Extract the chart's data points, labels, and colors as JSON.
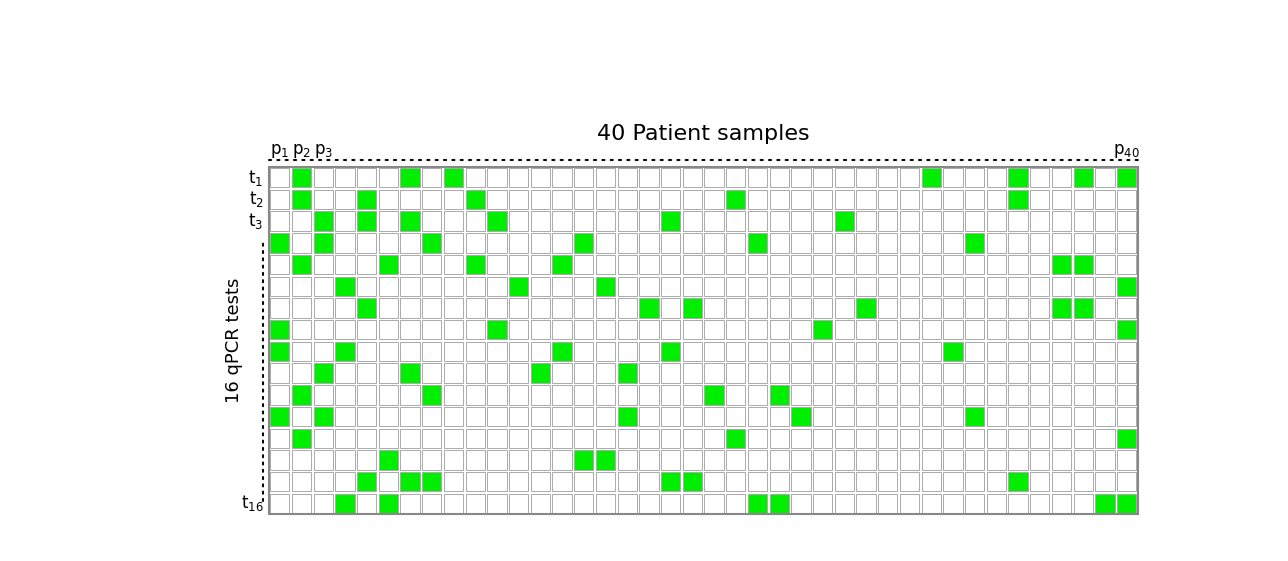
{
  "title": "40 Patient samples",
  "n_rows": 16,
  "n_cols": 40,
  "ylabel": "16 qPCR tests",
  "green_color": "#00ee00",
  "grid_color": "#aaaaaa",
  "bg_color": "#ffffff",
  "cell_bg": "#ffffff",
  "matrix": [
    [
      0,
      1,
      0,
      0,
      0,
      0,
      1,
      0,
      1,
      0,
      0,
      0,
      0,
      0,
      0,
      0,
      0,
      0,
      0,
      0,
      0,
      0,
      0,
      0,
      0,
      0,
      0,
      0,
      0,
      0,
      1,
      0,
      0,
      0,
      1,
      0,
      0,
      1,
      0,
      1
    ],
    [
      0,
      1,
      0,
      0,
      1,
      0,
      0,
      0,
      0,
      1,
      0,
      0,
      0,
      0,
      0,
      0,
      0,
      0,
      0,
      0,
      0,
      1,
      0,
      0,
      0,
      0,
      0,
      0,
      0,
      0,
      0,
      0,
      0,
      0,
      1,
      0,
      0,
      0,
      0,
      0
    ],
    [
      0,
      0,
      1,
      0,
      1,
      0,
      1,
      0,
      0,
      0,
      1,
      0,
      0,
      0,
      0,
      0,
      0,
      0,
      1,
      0,
      0,
      0,
      0,
      0,
      0,
      0,
      1,
      0,
      0,
      0,
      0,
      0,
      0,
      0,
      0,
      0,
      0,
      0,
      0,
      0
    ],
    [
      1,
      0,
      1,
      0,
      0,
      0,
      0,
      1,
      0,
      0,
      0,
      0,
      0,
      0,
      1,
      0,
      0,
      0,
      0,
      0,
      0,
      0,
      1,
      0,
      0,
      0,
      0,
      0,
      0,
      0,
      0,
      0,
      1,
      0,
      0,
      0,
      0,
      0,
      0,
      0
    ],
    [
      0,
      1,
      0,
      0,
      0,
      1,
      0,
      0,
      0,
      1,
      0,
      0,
      0,
      1,
      0,
      0,
      0,
      0,
      0,
      0,
      0,
      0,
      0,
      0,
      0,
      0,
      0,
      0,
      0,
      0,
      0,
      0,
      0,
      0,
      0,
      0,
      1,
      1,
      0,
      0
    ],
    [
      0,
      0,
      0,
      1,
      0,
      0,
      0,
      0,
      0,
      0,
      0,
      1,
      0,
      0,
      0,
      1,
      0,
      0,
      0,
      0,
      0,
      0,
      0,
      0,
      0,
      0,
      0,
      0,
      0,
      0,
      0,
      0,
      0,
      0,
      0,
      0,
      0,
      0,
      0,
      1
    ],
    [
      0,
      0,
      0,
      0,
      1,
      0,
      0,
      0,
      0,
      0,
      0,
      0,
      0,
      0,
      0,
      0,
      0,
      1,
      0,
      1,
      0,
      0,
      0,
      0,
      0,
      0,
      0,
      1,
      0,
      0,
      0,
      0,
      0,
      0,
      0,
      0,
      1,
      1,
      0,
      0
    ],
    [
      1,
      0,
      0,
      0,
      0,
      0,
      0,
      0,
      0,
      0,
      1,
      0,
      0,
      0,
      0,
      0,
      0,
      0,
      0,
      0,
      0,
      0,
      0,
      0,
      0,
      1,
      0,
      0,
      0,
      0,
      0,
      0,
      0,
      0,
      0,
      0,
      0,
      0,
      0,
      1
    ],
    [
      1,
      0,
      0,
      1,
      0,
      0,
      0,
      0,
      0,
      0,
      0,
      0,
      0,
      1,
      0,
      0,
      0,
      0,
      1,
      0,
      0,
      0,
      0,
      0,
      0,
      0,
      0,
      0,
      0,
      0,
      0,
      1,
      0,
      0,
      0,
      0,
      0,
      0,
      0,
      0
    ],
    [
      0,
      0,
      1,
      0,
      0,
      0,
      1,
      0,
      0,
      0,
      0,
      0,
      1,
      0,
      0,
      0,
      1,
      0,
      0,
      0,
      0,
      0,
      0,
      0,
      0,
      0,
      0,
      0,
      0,
      0,
      0,
      0,
      0,
      0,
      0,
      0,
      0,
      0,
      0,
      0
    ],
    [
      0,
      1,
      0,
      0,
      0,
      0,
      0,
      1,
      0,
      0,
      0,
      0,
      0,
      0,
      0,
      0,
      0,
      0,
      0,
      0,
      1,
      0,
      0,
      1,
      0,
      0,
      0,
      0,
      0,
      0,
      0,
      0,
      0,
      0,
      0,
      0,
      0,
      0,
      0,
      0
    ],
    [
      1,
      0,
      1,
      0,
      0,
      0,
      0,
      0,
      0,
      0,
      0,
      0,
      0,
      0,
      0,
      0,
      1,
      0,
      0,
      0,
      0,
      0,
      0,
      0,
      1,
      0,
      0,
      0,
      0,
      0,
      0,
      0,
      1,
      0,
      0,
      0,
      0,
      0,
      0,
      0
    ],
    [
      0,
      1,
      0,
      0,
      0,
      0,
      0,
      0,
      0,
      0,
      0,
      0,
      0,
      0,
      0,
      0,
      0,
      0,
      0,
      0,
      0,
      1,
      0,
      0,
      0,
      0,
      0,
      0,
      0,
      0,
      0,
      0,
      0,
      0,
      0,
      0,
      0,
      0,
      0,
      1
    ],
    [
      0,
      0,
      0,
      0,
      0,
      1,
      0,
      0,
      0,
      0,
      0,
      0,
      0,
      0,
      1,
      1,
      0,
      0,
      0,
      0,
      0,
      0,
      0,
      0,
      0,
      0,
      0,
      0,
      0,
      0,
      0,
      0,
      0,
      0,
      0,
      0,
      0,
      0,
      0,
      0
    ],
    [
      0,
      0,
      0,
      0,
      1,
      0,
      1,
      1,
      0,
      0,
      0,
      0,
      0,
      0,
      0,
      0,
      0,
      0,
      1,
      1,
      0,
      0,
      0,
      0,
      0,
      0,
      0,
      0,
      0,
      0,
      0,
      0,
      0,
      0,
      1,
      0,
      0,
      0,
      0,
      0
    ],
    [
      0,
      0,
      0,
      1,
      0,
      1,
      0,
      0,
      0,
      0,
      0,
      0,
      0,
      0,
      0,
      0,
      0,
      0,
      0,
      0,
      0,
      0,
      1,
      1,
      0,
      0,
      0,
      0,
      0,
      0,
      0,
      0,
      0,
      0,
      0,
      0,
      0,
      0,
      1,
      1
    ]
  ]
}
